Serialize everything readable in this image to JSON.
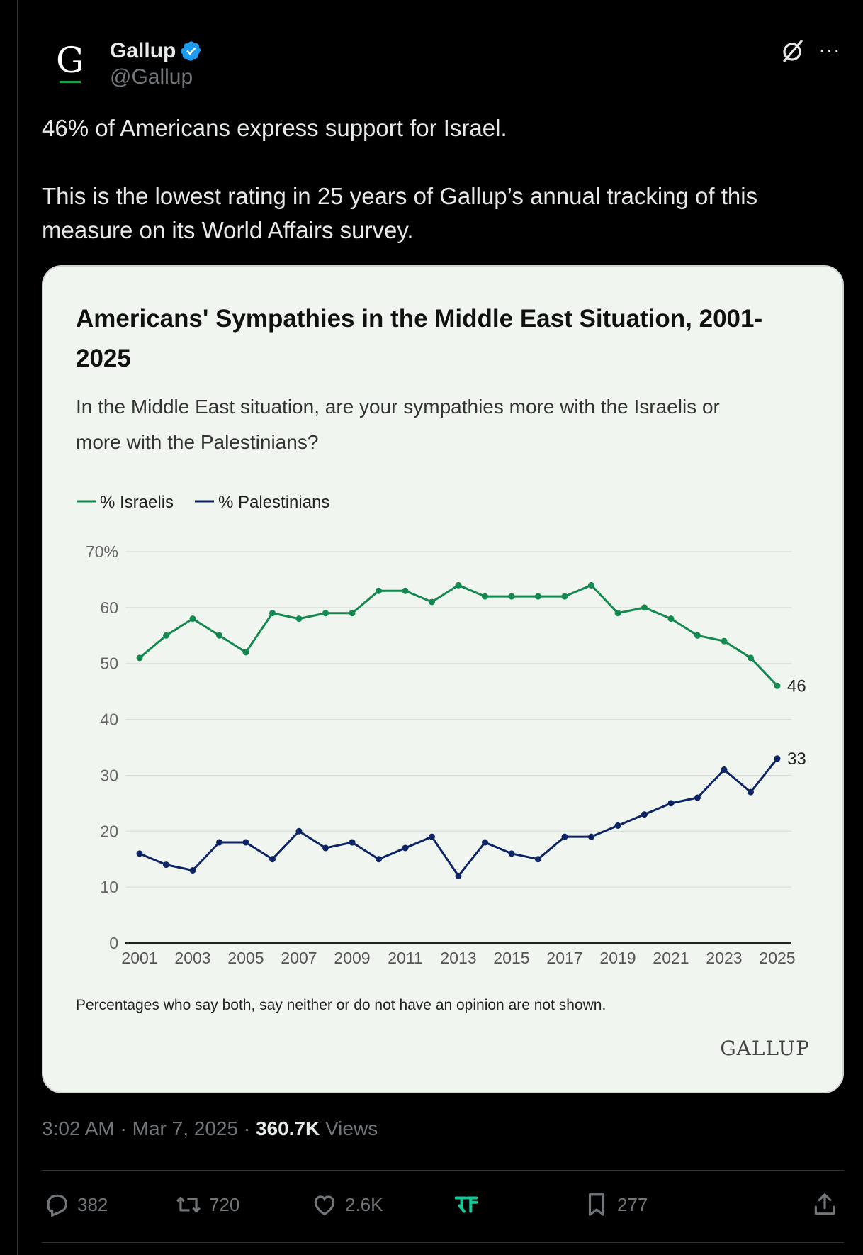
{
  "author": {
    "avatar_letter": "G",
    "display_name": "Gallup",
    "handle": "@Gallup",
    "verified_color": "#1d9bf0"
  },
  "post_text": {
    "line1": "46% of Americans express support for Israel.",
    "line2": "This is the lowest rating in 25 years of Gallup’s annual tracking of this",
    "line3": "measure on its World Affairs survey."
  },
  "chart_data": {
    "type": "line",
    "title_line1": "Americans' Sympathies in the Middle East Situation, 2001-",
    "title_line2": "2025",
    "subtitle_line1": "In the Middle East situation, are your sympathies more with the Israelis or",
    "subtitle_line2": "more with the Palestinians?",
    "x": [
      2001,
      2002,
      2003,
      2004,
      2005,
      2006,
      2007,
      2008,
      2009,
      2010,
      2011,
      2012,
      2013,
      2014,
      2015,
      2016,
      2017,
      2018,
      2019,
      2020,
      2021,
      2022,
      2023,
      2024,
      2025
    ],
    "x_tick_labels": [
      "2001",
      "2003",
      "2005",
      "2007",
      "2009",
      "2011",
      "2013",
      "2015",
      "2017",
      "2019",
      "2021",
      "2023",
      "2025"
    ],
    "y_tick_labels": [
      "70%",
      "60",
      "50",
      "40",
      "30",
      "20",
      "10",
      "0"
    ],
    "y_ticks": [
      70,
      60,
      50,
      40,
      30,
      20,
      10,
      0
    ],
    "ylim": [
      0,
      70
    ],
    "series": [
      {
        "name": "% Israelis",
        "color": "#12894f",
        "end_label": "46",
        "values": [
          51,
          55,
          58,
          55,
          52,
          59,
          58,
          59,
          59,
          63,
          63,
          61,
          64,
          62,
          62,
          62,
          62,
          64,
          59,
          60,
          58,
          55,
          54,
          51,
          46
        ]
      },
      {
        "name": "% Palestinians",
        "color": "#0d2466",
        "end_label": "33",
        "values": [
          16,
          14,
          13,
          18,
          18,
          15,
          20,
          17,
          18,
          15,
          17,
          19,
          12,
          18,
          16,
          15,
          19,
          19,
          21,
          23,
          25,
          26,
          31,
          27,
          33
        ]
      }
    ],
    "legend_position": "top-left",
    "footnote": "Percentages who say both, say neither or do not have an opinion are not shown.",
    "brand": "GALLUP"
  },
  "meta": {
    "time": "3:02 AM",
    "date": "Mar 7, 2025",
    "views_count": "360.7K",
    "views_label": "Views"
  },
  "actions": {
    "replies": "382",
    "reposts": "720",
    "likes": "2.6K",
    "bookmarks": "277"
  }
}
